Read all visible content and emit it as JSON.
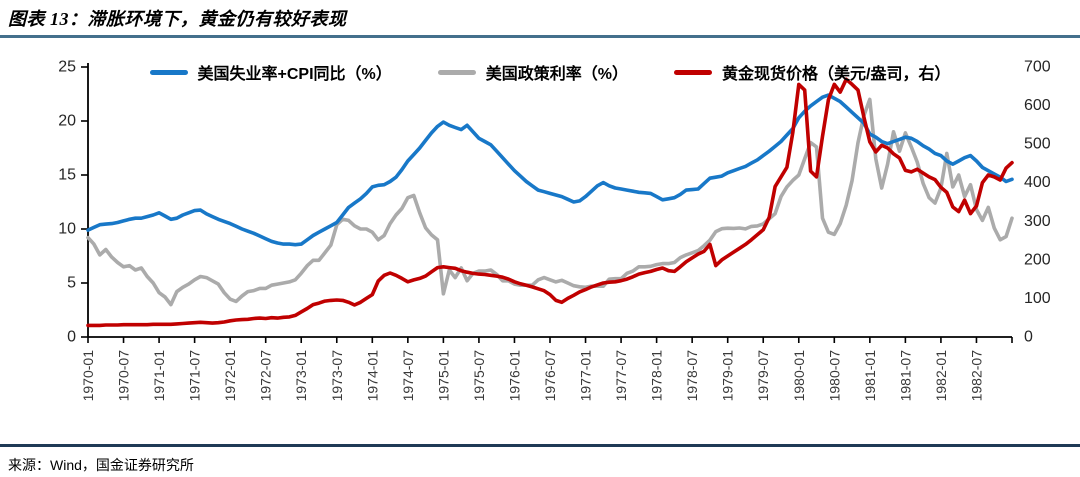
{
  "title": "图表 13：滞胀环境下，黄金仍有较好表现",
  "source": "来源：Wind，国金证券研究所",
  "colors": {
    "blue_series": "#1878C8",
    "gray_series": "#ABABAB",
    "red_series": "#C00000",
    "axis_line": "#000000",
    "tick_text": "#262626",
    "x_label_text": "#3A3A3A",
    "title_rule": "#44708C",
    "source_rule": "#1F3A56"
  },
  "chart_data": {
    "type": "line",
    "title": "滞胀环境下，黄金仍有较好表现",
    "x_start": "1970-01",
    "x_end": "1983-01",
    "frequency": "monthly",
    "grid": false,
    "legend_position": "top",
    "x_tick_labels": [
      "1970-01",
      "1970-07",
      "1971-01",
      "1971-07",
      "1972-01",
      "1972-07",
      "1973-01",
      "1973-07",
      "1974-01",
      "1974-07",
      "1975-01",
      "1975-07",
      "1976-01",
      "1976-07",
      "1977-01",
      "1977-07",
      "1978-01",
      "1978-07",
      "1979-01",
      "1979-07",
      "1980-01",
      "1980-07",
      "1981-01",
      "1981-07",
      "1982-01",
      "1982-07"
    ],
    "left_axis": {
      "min": 0,
      "max": 25,
      "ticks": [
        0,
        5,
        10,
        15,
        20,
        25
      ]
    },
    "right_axis": {
      "min": 0,
      "max": 700,
      "ticks": [
        0,
        100,
        200,
        300,
        400,
        500,
        600,
        700
      ]
    },
    "series": [
      {
        "name": "美国失业率+CPI同比（%）",
        "axis": "left",
        "color": "#1878C8",
        "values": [
          9.9,
          10.15,
          10.4,
          10.45,
          10.5,
          10.6,
          10.75,
          10.9,
          11.0,
          11.0,
          11.15,
          11.3,
          11.5,
          11.2,
          10.9,
          11.0,
          11.3,
          11.5,
          11.7,
          11.75,
          11.4,
          11.15,
          10.9,
          10.7,
          10.5,
          10.25,
          10.0,
          9.8,
          9.6,
          9.35,
          9.1,
          8.85,
          8.7,
          8.6,
          8.6,
          8.55,
          8.6,
          9.0,
          9.4,
          9.7,
          10.0,
          10.3,
          10.6,
          11.3,
          12.0,
          12.4,
          12.8,
          13.3,
          13.9,
          14.05,
          14.1,
          14.4,
          14.8,
          15.5,
          16.3,
          16.9,
          17.5,
          18.2,
          18.9,
          19.5,
          19.9,
          19.6,
          19.4,
          19.2,
          19.6,
          19.0,
          18.4,
          18.1,
          17.8,
          17.2,
          16.6,
          16.0,
          15.4,
          14.9,
          14.4,
          14.0,
          13.6,
          13.45,
          13.3,
          13.15,
          13.0,
          12.75,
          12.5,
          12.6,
          13.0,
          13.5,
          14.0,
          14.3,
          14.0,
          13.8,
          13.7,
          13.6,
          13.5,
          13.4,
          13.35,
          13.3,
          13.0,
          12.7,
          12.8,
          12.9,
          13.2,
          13.6,
          13.65,
          13.7,
          14.2,
          14.7,
          14.8,
          14.9,
          15.2,
          15.4,
          15.6,
          15.8,
          16.1,
          16.4,
          16.8,
          17.2,
          17.65,
          18.1,
          18.7,
          19.3,
          20.3,
          20.9,
          21.4,
          21.8,
          22.2,
          22.4,
          22.1,
          21.8,
          21.3,
          20.8,
          20.3,
          19.8,
          18.8,
          18.5,
          18.1,
          17.9,
          18.1,
          18.3,
          18.5,
          18.4,
          18.1,
          17.7,
          17.4,
          17.0,
          16.8,
          16.3,
          16.0,
          16.3,
          16.6,
          16.8,
          16.3,
          15.7,
          15.4,
          15.1,
          14.8,
          14.4,
          14.6
        ]
      },
      {
        "name": "美国政策利率（%）",
        "axis": "left",
        "color": "#ABABAB",
        "values": [
          9.2,
          8.6,
          7.6,
          8.1,
          7.4,
          6.9,
          6.5,
          6.6,
          6.2,
          6.4,
          5.6,
          5.0,
          4.1,
          3.7,
          3.0,
          4.2,
          4.6,
          4.9,
          5.3,
          5.6,
          5.5,
          5.2,
          4.9,
          4.1,
          3.5,
          3.3,
          3.8,
          4.2,
          4.3,
          4.5,
          4.5,
          4.8,
          4.9,
          5.0,
          5.1,
          5.3,
          5.9,
          6.6,
          7.1,
          7.1,
          7.8,
          8.5,
          10.4,
          10.9,
          10.8,
          10.3,
          10.0,
          10.0,
          9.7,
          9.0,
          9.4,
          10.5,
          11.3,
          11.9,
          12.9,
          13.1,
          11.5,
          10.1,
          9.45,
          9.0,
          4.0,
          6.2,
          5.5,
          6.4,
          5.2,
          5.9,
          6.1,
          6.1,
          6.2,
          5.8,
          5.2,
          5.2,
          4.9,
          4.8,
          4.8,
          4.8,
          5.3,
          5.5,
          5.3,
          5.1,
          5.25,
          5.0,
          4.75,
          4.65,
          4.6,
          4.7,
          4.7,
          4.7,
          5.35,
          5.4,
          5.4,
          5.9,
          6.1,
          6.5,
          6.5,
          6.55,
          6.7,
          6.8,
          6.8,
          6.9,
          7.35,
          7.6,
          7.8,
          8.0,
          8.45,
          8.96,
          9.76,
          10.03,
          10.07,
          10.06,
          10.09,
          10.01,
          10.24,
          10.29,
          10.47,
          10.94,
          11.43,
          13.0,
          13.9,
          14.5,
          15.0,
          16.5,
          18.0,
          17.6,
          11.0,
          9.7,
          9.5,
          10.5,
          12.2,
          14.5,
          18.0,
          20.5,
          22.0,
          16.5,
          13.8,
          16.0,
          19.0,
          17.2,
          18.9,
          17.6,
          16.2,
          14.2,
          12.9,
          12.4,
          13.8,
          17.0,
          13.9,
          15.0,
          13.0,
          14.1,
          11.8,
          10.8,
          12.0,
          10.1,
          9.0,
          9.3,
          11.0
        ]
      },
      {
        "name": "黄金现货价格（美元/盎司，右）",
        "axis": "right",
        "color": "#C00000",
        "values": [
          30,
          30,
          30,
          31,
          31,
          31,
          32,
          32,
          32,
          32,
          32,
          33,
          33,
          33,
          33,
          34,
          35,
          36,
          37,
          38,
          37,
          36,
          37,
          39,
          42,
          44,
          45,
          46,
          48,
          49,
          48,
          50,
          49,
          51,
          52,
          56,
          65,
          74,
          84,
          88,
          93,
          95,
          96,
          95,
          90,
          83,
          90,
          100,
          110,
          145,
          160,
          166,
          160,
          152,
          143,
          148,
          152,
          158,
          169,
          180,
          182,
          180,
          178,
          172,
          168,
          165,
          163,
          162,
          160,
          158,
          155,
          150,
          143,
          138,
          134,
          130,
          125,
          120,
          110,
          95,
          90,
          100,
          108,
          117,
          123,
          130,
          135,
          140,
          142,
          143,
          146,
          150,
          156,
          163,
          167,
          170,
          175,
          179,
          172,
          170,
          182,
          195,
          205,
          215,
          222,
          240,
          185,
          200,
          210,
          220,
          230,
          240,
          252,
          265,
          278,
          310,
          390,
          415,
          440,
          530,
          655,
          640,
          430,
          415,
          520,
          615,
          655,
          635,
          668,
          655,
          640,
          570,
          506,
          480,
          497,
          490,
          475,
          464,
          432,
          428,
          435,
          425,
          415,
          408,
          388,
          375,
          337,
          325,
          355,
          320,
          340,
          400,
          420,
          415,
          407,
          438,
          452
        ]
      }
    ]
  }
}
